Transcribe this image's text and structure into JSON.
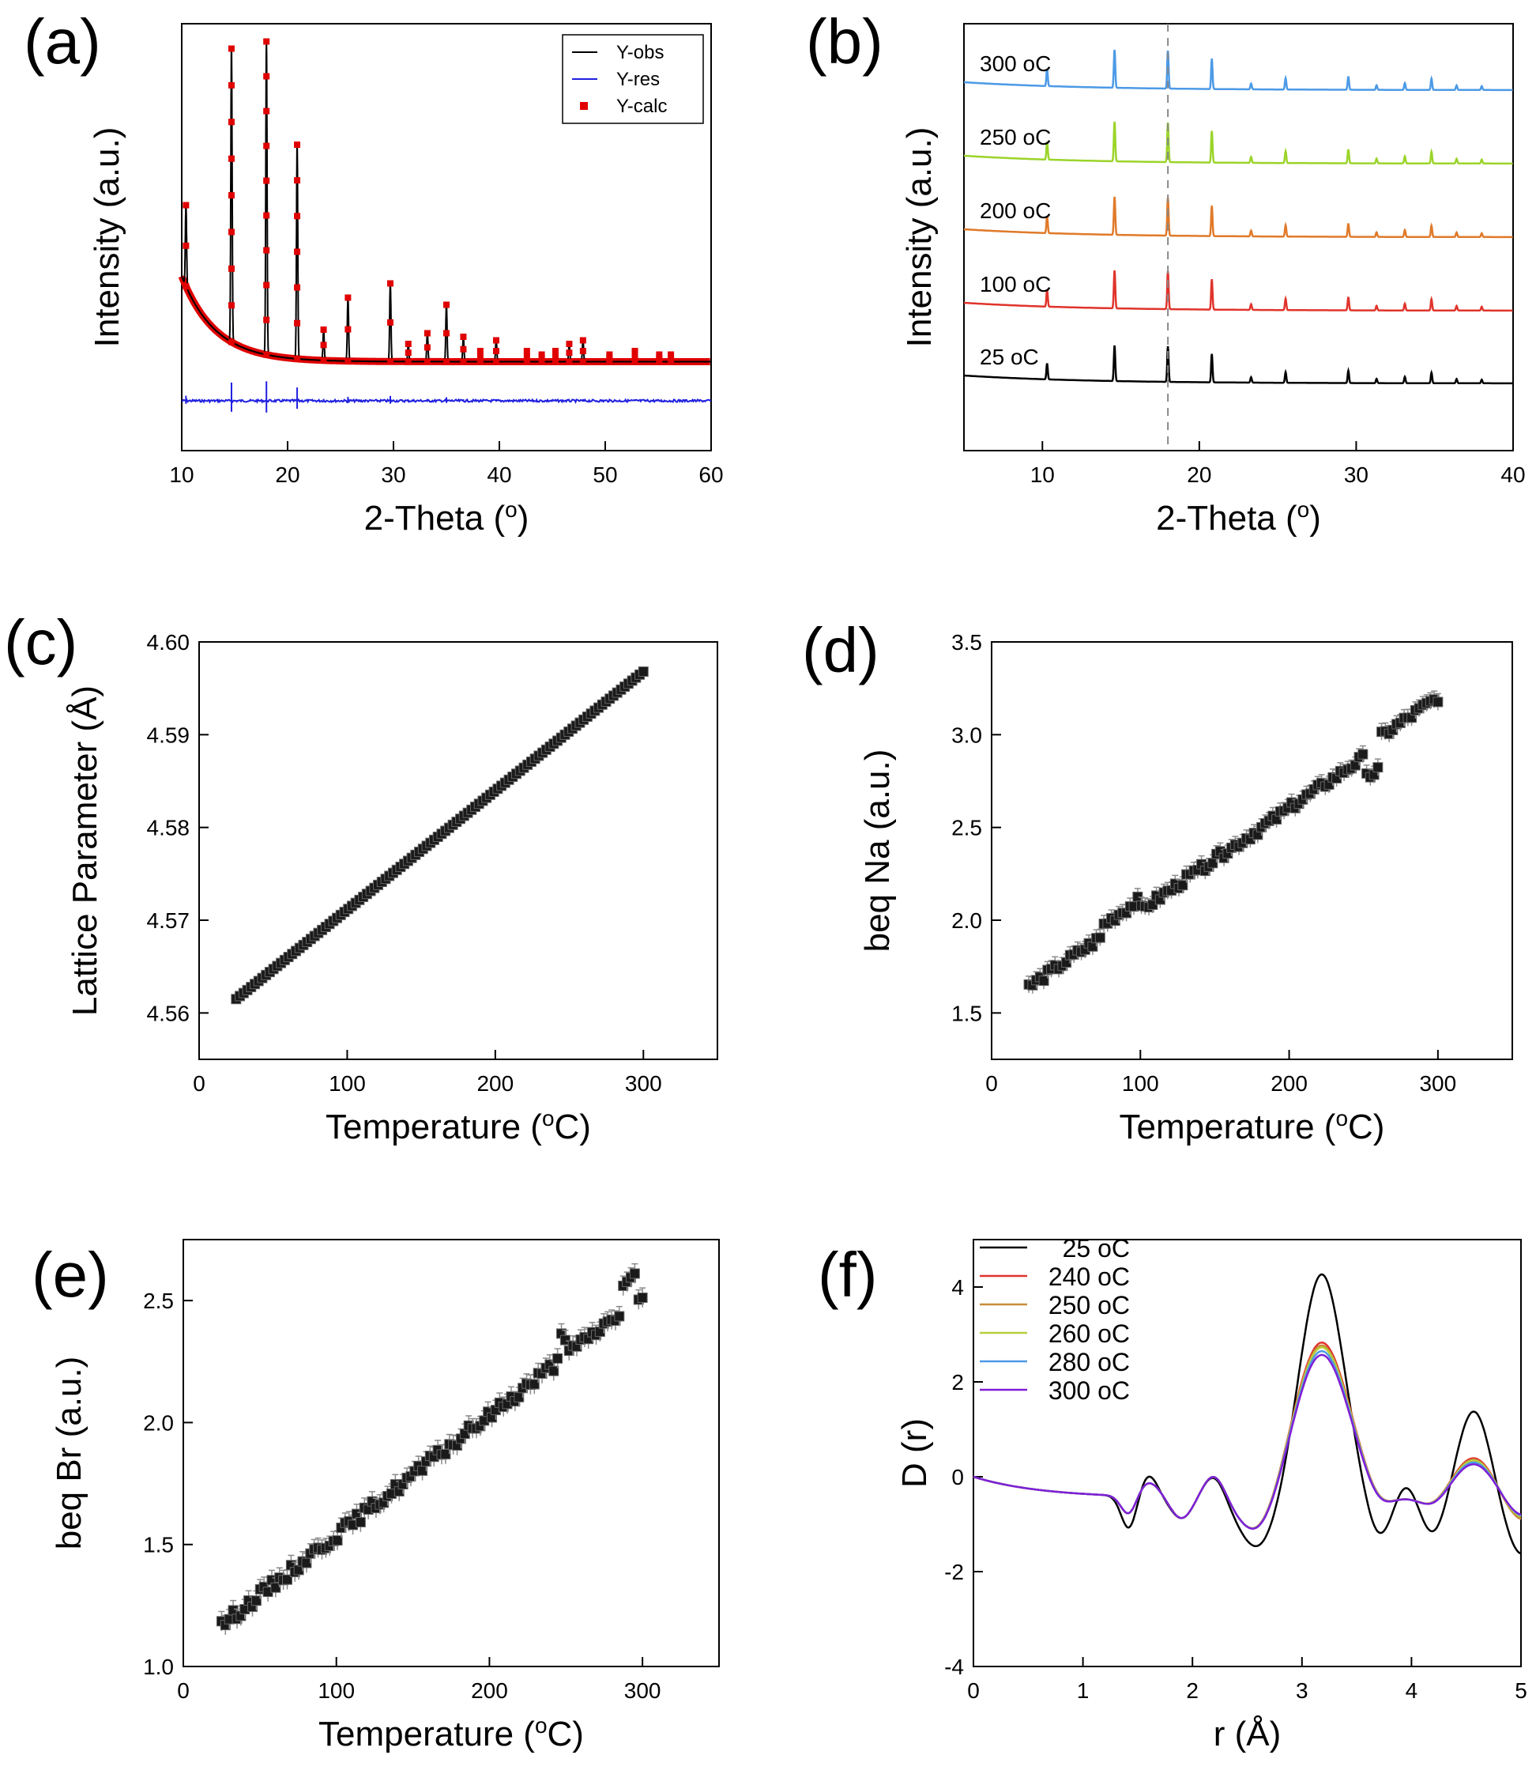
{
  "figure": {
    "panels": [
      "(a)",
      "(b)",
      "(c)",
      "(d)",
      "(e)",
      "(f)"
    ]
  },
  "chart_data": [
    {
      "id": "a",
      "panel_label": "(a)",
      "type": "line",
      "xlabel": "2-Theta (o)",
      "xlabel_main": "2-Theta (",
      "xlabel_sup": "o",
      "xlabel_tail": ")",
      "ylabel": "Intensity (a.u.)",
      "xlim": [
        10,
        60
      ],
      "ylim": [
        -0.15,
        1.05
      ],
      "xticks": [
        10,
        20,
        30,
        40,
        50,
        60
      ],
      "yticks": [],
      "legend_position": "top-right",
      "background": {
        "base": 0.1,
        "amplitude": 0.24,
        "decay": 3.2
      },
      "residual_level": -0.01,
      "peaks": [
        {
          "x": 10.4,
          "y": 0.54
        },
        {
          "x": 14.7,
          "y": 0.98
        },
        {
          "x": 18.0,
          "y": 1.0
        },
        {
          "x": 20.9,
          "y": 0.71
        },
        {
          "x": 23.4,
          "y": 0.19
        },
        {
          "x": 25.7,
          "y": 0.28
        },
        {
          "x": 29.7,
          "y": 0.32
        },
        {
          "x": 31.4,
          "y": 0.15
        },
        {
          "x": 33.2,
          "y": 0.18
        },
        {
          "x": 35.0,
          "y": 0.26
        },
        {
          "x": 36.6,
          "y": 0.17
        },
        {
          "x": 38.2,
          "y": 0.13
        },
        {
          "x": 39.7,
          "y": 0.16
        },
        {
          "x": 42.6,
          "y": 0.13
        },
        {
          "x": 44.0,
          "y": 0.12
        },
        {
          "x": 45.3,
          "y": 0.13
        },
        {
          "x": 46.6,
          "y": 0.15
        },
        {
          "x": 47.9,
          "y": 0.16
        },
        {
          "x": 50.4,
          "y": 0.12
        },
        {
          "x": 52.8,
          "y": 0.13
        },
        {
          "x": 55.1,
          "y": 0.12
        },
        {
          "x": 56.2,
          "y": 0.12
        }
      ],
      "series": [
        {
          "name": "Y-obs",
          "color": "#000000",
          "style": "line"
        },
        {
          "name": "Y-res",
          "color": "#1f1fe0",
          "style": "line"
        },
        {
          "name": "Y-calc",
          "color": "#e00000",
          "style": "marker"
        }
      ]
    },
    {
      "id": "b",
      "panel_label": "(b)",
      "type": "line",
      "xlabel": "2-Theta (o)",
      "xlabel_main": "2-Theta (",
      "xlabel_sup": "o",
      "xlabel_tail": ")",
      "ylabel": "Intensity (a.u.)",
      "xlim": [
        5,
        40
      ],
      "xticks": [
        10,
        20,
        30,
        40
      ],
      "yticks": [],
      "reference_line_x": 18.0,
      "peaks": [
        {
          "x": 10.3,
          "h": 0.45
        },
        {
          "x": 14.6,
          "h": 1.0
        },
        {
          "x": 18.0,
          "h": 1.0
        },
        {
          "x": 20.8,
          "h": 0.8
        },
        {
          "x": 23.3,
          "h": 0.15
        },
        {
          "x": 25.5,
          "h": 0.3
        },
        {
          "x": 29.5,
          "h": 0.35
        },
        {
          "x": 31.3,
          "h": 0.12
        },
        {
          "x": 33.1,
          "h": 0.18
        },
        {
          "x": 34.8,
          "h": 0.3
        },
        {
          "x": 36.4,
          "h": 0.12
        },
        {
          "x": 38.0,
          "h": 0.1
        }
      ],
      "series": [
        {
          "name": "25",
          "unit": "oC",
          "color": "#000000"
        },
        {
          "name": "100",
          "unit": "oC",
          "color": "#e0342c"
        },
        {
          "name": "200",
          "unit": "oC",
          "color": "#e07a2a"
        },
        {
          "name": "250",
          "unit": "oC",
          "color": "#9bd42a"
        },
        {
          "name": "300",
          "unit": "oC",
          "color": "#4c9ae6"
        }
      ]
    },
    {
      "id": "c",
      "panel_label": "(c)",
      "type": "scatter",
      "xlabel": "Temperature (oC)",
      "xlabel_main": "Temperature (",
      "xlabel_sup": "o",
      "xlabel_tail": "C)",
      "ylabel": "Lattice Parameter (Å)",
      "xlim": [
        0,
        350
      ],
      "ylim": [
        4.555,
        4.6
      ],
      "xticks": [
        0,
        100,
        200,
        300
      ],
      "yticks": [
        4.56,
        4.57,
        4.58,
        4.59,
        4.6
      ],
      "ytick_labels": [
        "4.56",
        "4.57",
        "4.58",
        "4.59",
        "4.60"
      ],
      "x_range": [
        25,
        300
      ],
      "y_range": [
        4.5615,
        4.5968
      ],
      "n_points": 110,
      "noise": 0.0,
      "error": 0.0,
      "wiggles": []
    },
    {
      "id": "d",
      "panel_label": "(d)",
      "type": "scatter",
      "xlabel": "Temperature (oC)",
      "xlabel_main": "Temperature (",
      "xlabel_sup": "o",
      "xlabel_tail": "C)",
      "ylabel": "beq Na (a.u.)",
      "xlim": [
        0,
        350
      ],
      "ylim": [
        1.25,
        3.5
      ],
      "xticks": [
        0,
        100,
        200,
        300
      ],
      "yticks": [
        1.5,
        2.0,
        2.5,
        3.0,
        3.5
      ],
      "ytick_labels": [
        "1.5",
        "2.0",
        "2.5",
        "3.0",
        "3.5"
      ],
      "x_range": [
        25,
        300
      ],
      "y_range": [
        1.64,
        3.15
      ],
      "n_points": 110,
      "noise": 0.025,
      "error": 0.045,
      "wiggles": [
        {
          "x0": 75,
          "x1": 100,
          "dy": 0.06
        },
        {
          "x0": 250,
          "x1": 260,
          "dy": -0.12
        },
        {
          "x0": 260,
          "x1": 300,
          "dy": 0.05
        }
      ]
    },
    {
      "id": "e",
      "panel_label": "(e)",
      "type": "scatter",
      "xlabel": "Temperature (oC)",
      "xlabel_main": "Temperature (",
      "xlabel_sup": "o",
      "xlabel_tail": "C)",
      "ylabel": "beq Br (a.u.)",
      "xlim": [
        0,
        350
      ],
      "ylim": [
        1.0,
        2.75
      ],
      "xticks": [
        0,
        100,
        200,
        300
      ],
      "yticks": [
        1.0,
        1.5,
        2.0,
        2.5
      ],
      "ytick_labels": [
        "1.0",
        "1.5",
        "2.0",
        "2.5"
      ],
      "x_range": [
        25,
        300
      ],
      "y_range": [
        1.17,
        2.52
      ],
      "n_points": 110,
      "noise": 0.025,
      "error": 0.04,
      "wiggles": [
        {
          "x0": 245,
          "x1": 252,
          "dy": 0.08
        },
        {
          "x0": 285,
          "x1": 295,
          "dy": 0.1
        }
      ]
    },
    {
      "id": "f",
      "panel_label": "(f)",
      "type": "line",
      "xlabel": "r (Å)",
      "ylabel": "D (r)",
      "xlim": [
        0,
        5
      ],
      "ylim": [
        -4,
        5
      ],
      "xticks": [
        0,
        1,
        2,
        3,
        4,
        5
      ],
      "yticks": [
        -4,
        -2,
        0,
        2,
        4
      ],
      "legend_position": "top-left",
      "series": [
        {
          "name": "25",
          "unit": "oC",
          "color": "#000000",
          "main_peak": 4.22,
          "second_peak": 1.25,
          "trough": -1.9
        },
        {
          "name": "240",
          "unit": "oC",
          "color": "#e0342c",
          "main_peak": 2.78,
          "second_peak": 0.25,
          "trough": -1.2
        },
        {
          "name": "250",
          "unit": "oC",
          "color": "#c88b3a",
          "main_peak": 2.72,
          "second_peak": 0.22,
          "trough": -1.2
        },
        {
          "name": "260",
          "unit": "oC",
          "color": "#b7cf3a",
          "main_peak": 2.68,
          "second_peak": 0.2,
          "trough": -1.15
        },
        {
          "name": "280",
          "unit": "oC",
          "color": "#4c9ae6",
          "main_peak": 2.6,
          "second_peak": 0.16,
          "trough": -1.12
        },
        {
          "name": "300",
          "unit": "oC",
          "color": "#7f1fd6",
          "main_peak": 2.52,
          "second_peak": 0.12,
          "trough": -1.1
        }
      ]
    }
  ]
}
